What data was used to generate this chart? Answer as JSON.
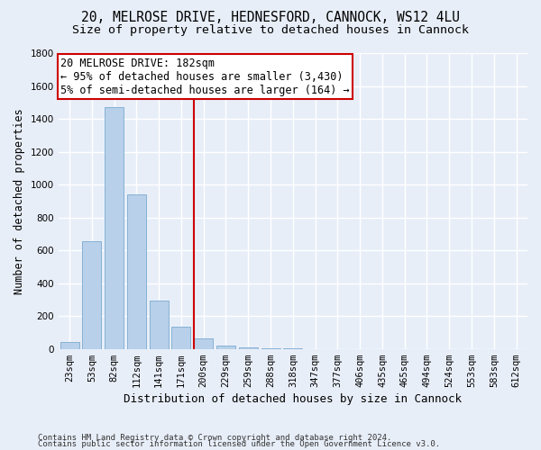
{
  "title1": "20, MELROSE DRIVE, HEDNESFORD, CANNOCK, WS12 4LU",
  "title2": "Size of property relative to detached houses in Cannock",
  "xlabel": "Distribution of detached houses by size in Cannock",
  "ylabel": "Number of detached properties",
  "categories": [
    "23sqm",
    "53sqm",
    "82sqm",
    "112sqm",
    "141sqm",
    "171sqm",
    "200sqm",
    "229sqm",
    "259sqm",
    "288sqm",
    "318sqm",
    "347sqm",
    "377sqm",
    "406sqm",
    "435sqm",
    "465sqm",
    "494sqm",
    "524sqm",
    "553sqm",
    "583sqm",
    "612sqm"
  ],
  "values": [
    40,
    655,
    1470,
    940,
    295,
    135,
    65,
    22,
    10,
    4,
    2,
    1,
    0,
    0,
    0,
    0,
    0,
    0,
    0,
    0,
    0
  ],
  "bar_color": "#b8d0ea",
  "bar_edgecolor": "#7aaad0",
  "vline_x": 5.55,
  "vline_color": "#cc0000",
  "annotation_text": "20 MELROSE DRIVE: 182sqm\n← 95% of detached houses are smaller (3,430)\n5% of semi-detached houses are larger (164) →",
  "annotation_box_color": "#ffffff",
  "annotation_box_edgecolor": "#cc0000",
  "ylim": [
    0,
    1800
  ],
  "yticks": [
    0,
    200,
    400,
    600,
    800,
    1000,
    1200,
    1400,
    1600,
    1800
  ],
  "background_color": "#e8eef8",
  "grid_color": "#ffffff",
  "footer_line1": "Contains HM Land Registry data © Crown copyright and database right 2024.",
  "footer_line2": "Contains public sector information licensed under the Open Government Licence v3.0.",
  "title1_fontsize": 10.5,
  "title2_fontsize": 9.5,
  "annotation_fontsize": 8.5,
  "tick_fontsize": 7.5,
  "ylabel_fontsize": 8.5,
  "xlabel_fontsize": 9,
  "footer_fontsize": 6.5
}
